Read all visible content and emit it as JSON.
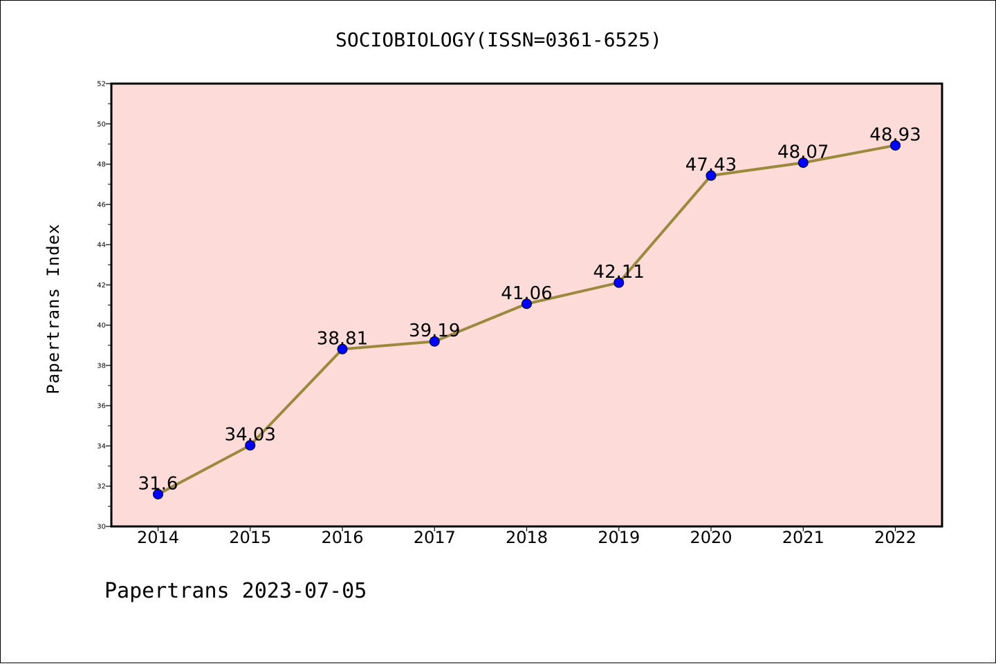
{
  "chart_data": {
    "type": "line",
    "title": "SOCIOBIOLOGY(ISSN=0361-6525)",
    "xlabel": "",
    "ylabel": "Papertrans Index",
    "categories": [
      "2014",
      "2015",
      "2016",
      "2017",
      "2018",
      "2019",
      "2020",
      "2021",
      "2022"
    ],
    "values": [
      31.6,
      34.03,
      38.81,
      39.19,
      41.06,
      42.11,
      47.43,
      48.07,
      48.93
    ],
    "data_labels": [
      "31.6",
      "34.03",
      "38.81",
      "39.19",
      "41.06",
      "42.11",
      "47.43",
      "48.07",
      "48.93"
    ],
    "ylim": [
      30,
      52
    ],
    "yticks": [
      "30",
      "32",
      "34",
      "36",
      "38",
      "40",
      "42",
      "44",
      "46",
      "48",
      "50",
      "52"
    ],
    "grid": false,
    "legend": "none",
    "footer": "Papertrans 2023-07-05",
    "colors": {
      "plot_background": "#fddbd8",
      "line": "#9b8a3e",
      "marker": "#0000ff",
      "axes": "#000000"
    }
  }
}
